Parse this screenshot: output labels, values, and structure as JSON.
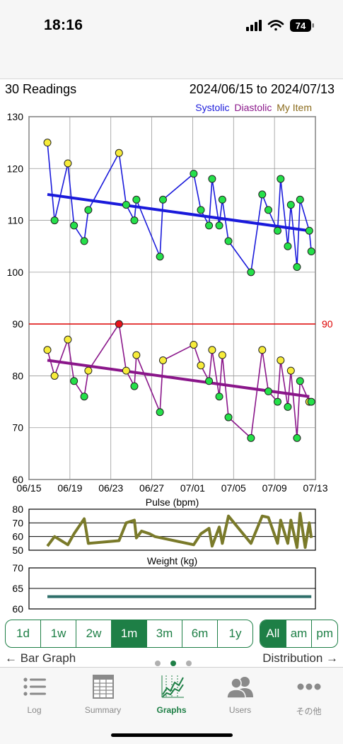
{
  "status_bar": {
    "time": "18:16",
    "battery": "74"
  },
  "summary": {
    "readings": "30 Readings",
    "date_range": "2024/06/15 to 2024/07/13"
  },
  "legend": [
    {
      "label": "Systolic",
      "color": "#1a1adb"
    },
    {
      "label": "Diastolic",
      "color": "#8a168a"
    },
    {
      "label": "My Item",
      "color": "#8a6a1a"
    }
  ],
  "chart_data": [
    {
      "type": "scatter",
      "title": "",
      "x_ticks": [
        "06/15",
        "06/19",
        "06/23",
        "06/27",
        "07/01",
        "07/05",
        "07/09",
        "07/13"
      ],
      "x_range": [
        0,
        28
      ],
      "y_ticks": [
        "130",
        "120",
        "110",
        "100",
        "90",
        "80",
        "70",
        "60"
      ],
      "ylim": [
        60,
        130
      ],
      "reference_line": {
        "value": 90,
        "label": "90",
        "color": "#dd0000"
      },
      "series": [
        {
          "name": "Systolic",
          "color": "#1a1adb",
          "points": [
            {
              "x": 1.8,
              "y": 125,
              "c": "yellow"
            },
            {
              "x": 2.5,
              "y": 110,
              "c": "green"
            },
            {
              "x": 3.8,
              "y": 121,
              "c": "yellow"
            },
            {
              "x": 4.4,
              "y": 109,
              "c": "green"
            },
            {
              "x": 5.4,
              "y": 106,
              "c": "green"
            },
            {
              "x": 5.8,
              "y": 112,
              "c": "green"
            },
            {
              "x": 8.8,
              "y": 123,
              "c": "yellow"
            },
            {
              "x": 9.5,
              "y": 113,
              "c": "green"
            },
            {
              "x": 10.3,
              "y": 110,
              "c": "green"
            },
            {
              "x": 10.5,
              "y": 114,
              "c": "green"
            },
            {
              "x": 12.8,
              "y": 103,
              "c": "green"
            },
            {
              "x": 13.1,
              "y": 114,
              "c": "green"
            },
            {
              "x": 16.1,
              "y": 119,
              "c": "green"
            },
            {
              "x": 16.8,
              "y": 112,
              "c": "green"
            },
            {
              "x": 17.6,
              "y": 109,
              "c": "green"
            },
            {
              "x": 17.9,
              "y": 118,
              "c": "green"
            },
            {
              "x": 18.6,
              "y": 109,
              "c": "green"
            },
            {
              "x": 18.9,
              "y": 114,
              "c": "green"
            },
            {
              "x": 19.5,
              "y": 106,
              "c": "green"
            },
            {
              "x": 21.7,
              "y": 100,
              "c": "green"
            },
            {
              "x": 22.8,
              "y": 115,
              "c": "green"
            },
            {
              "x": 23.4,
              "y": 112,
              "c": "green"
            },
            {
              "x": 24.3,
              "y": 108,
              "c": "green"
            },
            {
              "x": 24.6,
              "y": 118,
              "c": "green"
            },
            {
              "x": 25.3,
              "y": 105,
              "c": "green"
            },
            {
              "x": 25.6,
              "y": 113,
              "c": "green"
            },
            {
              "x": 26.2,
              "y": 101,
              "c": "green"
            },
            {
              "x": 26.5,
              "y": 114,
              "c": "green"
            },
            {
              "x": 27.4,
              "y": 108,
              "c": "green"
            },
            {
              "x": 27.6,
              "y": 104,
              "c": "green"
            }
          ],
          "trend": [
            [
              1.8,
              115
            ],
            [
              27.4,
              108
            ]
          ]
        },
        {
          "name": "Diastolic",
          "color": "#8a168a",
          "points": [
            {
              "x": 1.8,
              "y": 85,
              "c": "yellow"
            },
            {
              "x": 2.5,
              "y": 80,
              "c": "yellow"
            },
            {
              "x": 3.8,
              "y": 87,
              "c": "yellow"
            },
            {
              "x": 4.4,
              "y": 79,
              "c": "green"
            },
            {
              "x": 5.4,
              "y": 76,
              "c": "green"
            },
            {
              "x": 5.8,
              "y": 81,
              "c": "yellow"
            },
            {
              "x": 8.8,
              "y": 90,
              "c": "red"
            },
            {
              "x": 9.5,
              "y": 81,
              "c": "yellow"
            },
            {
              "x": 10.3,
              "y": 78,
              "c": "green"
            },
            {
              "x": 10.5,
              "y": 84,
              "c": "yellow"
            },
            {
              "x": 12.8,
              "y": 73,
              "c": "green"
            },
            {
              "x": 13.1,
              "y": 83,
              "c": "yellow"
            },
            {
              "x": 16.1,
              "y": 86,
              "c": "yellow"
            },
            {
              "x": 16.8,
              "y": 82,
              "c": "yellow"
            },
            {
              "x": 17.6,
              "y": 79,
              "c": "green"
            },
            {
              "x": 17.9,
              "y": 85,
              "c": "yellow"
            },
            {
              "x": 18.6,
              "y": 76,
              "c": "green"
            },
            {
              "x": 18.9,
              "y": 84,
              "c": "yellow"
            },
            {
              "x": 19.5,
              "y": 72,
              "c": "green"
            },
            {
              "x": 21.7,
              "y": 68,
              "c": "green"
            },
            {
              "x": 22.8,
              "y": 85,
              "c": "yellow"
            },
            {
              "x": 23.4,
              "y": 77,
              "c": "green"
            },
            {
              "x": 24.3,
              "y": 75,
              "c": "green"
            },
            {
              "x": 24.6,
              "y": 83,
              "c": "yellow"
            },
            {
              "x": 25.3,
              "y": 74,
              "c": "green"
            },
            {
              "x": 25.6,
              "y": 81,
              "c": "yellow"
            },
            {
              "x": 26.2,
              "y": 68,
              "c": "green"
            },
            {
              "x": 26.5,
              "y": 79,
              "c": "green"
            },
            {
              "x": 27.4,
              "y": 75,
              "c": "yellow"
            },
            {
              "x": 27.6,
              "y": 75,
              "c": "green"
            }
          ],
          "trend": [
            [
              1.8,
              83
            ],
            [
              27.4,
              76
            ]
          ]
        }
      ]
    },
    {
      "type": "line",
      "title": "Pulse (bpm)",
      "y_ticks": [
        "80",
        "70",
        "60",
        "50"
      ],
      "ylim": [
        50,
        80
      ],
      "x_range": [
        0,
        28
      ],
      "series": [
        {
          "name": "Pulse",
          "color": "#7a7a2a",
          "points": [
            [
              1.8,
              53
            ],
            [
              2.5,
              60
            ],
            [
              3.8,
              54
            ],
            [
              4.4,
              62
            ],
            [
              5.4,
              73
            ],
            [
              5.8,
              55
            ],
            [
              8.8,
              57
            ],
            [
              9.5,
              70
            ],
            [
              10.3,
              72
            ],
            [
              10.5,
              59
            ],
            [
              11.0,
              64
            ],
            [
              11.8,
              62
            ],
            [
              12.3,
              60
            ],
            [
              16.1,
              54
            ],
            [
              16.8,
              62
            ],
            [
              17.6,
              66
            ],
            [
              17.9,
              53
            ],
            [
              18.6,
              67
            ],
            [
              18.9,
              55
            ],
            [
              19.5,
              75
            ],
            [
              21.7,
              55
            ],
            [
              22.8,
              75
            ],
            [
              23.4,
              74
            ],
            [
              24.3,
              55
            ],
            [
              24.6,
              72
            ],
            [
              25.3,
              55
            ],
            [
              25.6,
              72
            ],
            [
              26.2,
              52
            ],
            [
              26.5,
              77
            ],
            [
              27.0,
              52
            ],
            [
              27.4,
              70
            ],
            [
              27.6,
              59
            ]
          ]
        }
      ]
    },
    {
      "type": "line",
      "title": "Weight (kg)",
      "y_ticks": [
        "70",
        "65",
        "60"
      ],
      "ylim": [
        60,
        70
      ],
      "x_range": [
        0,
        28
      ],
      "series": [
        {
          "name": "Weight",
          "color": "#2f6f6a",
          "points": [
            [
              1.8,
              63
            ],
            [
              27.6,
              63
            ]
          ]
        }
      ]
    }
  ],
  "range_buttons": [
    "1d",
    "1w",
    "2w",
    "1m",
    "3m",
    "6m",
    "1y"
  ],
  "range_selected": "1m",
  "time_buttons": [
    "All",
    "am",
    "pm"
  ],
  "time_selected": "All",
  "nav": {
    "back": "← Bar Graph",
    "forward": "Distribution →"
  },
  "page_dots": {
    "count": 3,
    "current": 2
  },
  "tabs": [
    {
      "label": "Log",
      "icon": "list-icon"
    },
    {
      "label": "Summary",
      "icon": "table-icon"
    },
    {
      "label": "Graphs",
      "icon": "graph-icon",
      "active": true
    },
    {
      "label": "Users",
      "icon": "users-icon"
    },
    {
      "label": "その他",
      "icon": "more-icon"
    }
  ]
}
